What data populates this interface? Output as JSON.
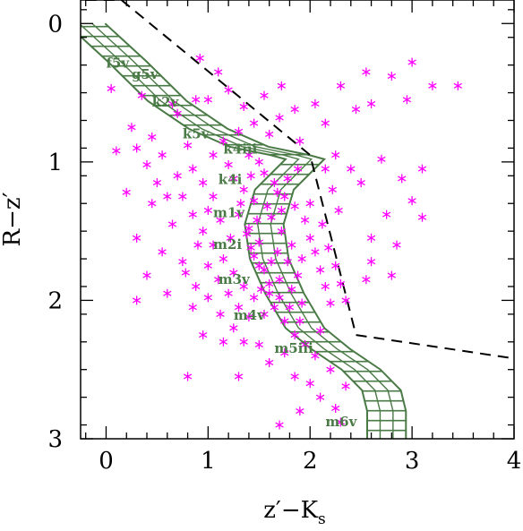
{
  "chart_data": {
    "type": "scatter",
    "title": "",
    "xlabel": "z′−K",
    "xlabel_subscript": "s",
    "ylabel": "R−z′",
    "xlim": [
      -0.25,
      4.0
    ],
    "ylim": [
      3.0,
      -0.17
    ],
    "y_inverted": true,
    "x_ticks": [
      "0",
      "1",
      "2",
      "3",
      "4"
    ],
    "y_ticks": [
      "0",
      "1",
      "2",
      "3"
    ],
    "grid": false,
    "colors": {
      "points": "#ff00ff",
      "band": "#4a7a46",
      "spectral_labels": "#4a7a46",
      "cut_line": "#000000"
    },
    "spectral_types": [
      {
        "label": "f5v",
        "x": 0.0,
        "y": 0.32
      },
      {
        "label": "g5v",
        "x": 0.25,
        "y": 0.4
      },
      {
        "label": "k2v",
        "x": 0.45,
        "y": 0.6
      },
      {
        "label": "k5v",
        "x": 0.75,
        "y": 0.83
      },
      {
        "label": "k4iii",
        "x": 1.15,
        "y": 0.94
      },
      {
        "label": "k4i",
        "x": 1.1,
        "y": 1.16
      },
      {
        "label": "m1v",
        "x": 1.05,
        "y": 1.4
      },
      {
        "label": "m2i",
        "x": 1.05,
        "y": 1.63
      },
      {
        "label": "m3v",
        "x": 1.1,
        "y": 1.88
      },
      {
        "label": "m4v",
        "x": 1.25,
        "y": 2.14
      },
      {
        "label": "m5iii",
        "x": 1.65,
        "y": 2.38
      },
      {
        "label": "m6v",
        "x": 2.15,
        "y": 2.91
      }
    ],
    "band_centerline": [
      [
        -0.2,
        0.0
      ],
      [
        0.2,
        0.27
      ],
      [
        0.6,
        0.56
      ],
      [
        1.0,
        0.76
      ],
      [
        1.4,
        0.89
      ],
      [
        1.8,
        0.95
      ],
      [
        1.95,
        0.98
      ],
      [
        1.65,
        1.2
      ],
      [
        1.55,
        1.45
      ],
      [
        1.6,
        1.7
      ],
      [
        1.75,
        1.95
      ],
      [
        1.95,
        2.2
      ],
      [
        2.2,
        2.35
      ],
      [
        2.5,
        2.5
      ],
      [
        2.7,
        2.65
      ],
      [
        2.75,
        2.8
      ],
      [
        2.75,
        3.0
      ]
    ],
    "band_half_width": 0.19,
    "cut_line": [
      [
        -0.2,
        -0.17
      ],
      [
        0.15,
        -0.17
      ],
      [
        2.0,
        0.95
      ],
      [
        2.45,
        2.25
      ],
      [
        4.0,
        2.42
      ]
    ],
    "points_xy": [
      [
        0.92,
        0.25
      ],
      [
        1.1,
        0.35
      ],
      [
        0.88,
        0.55
      ],
      [
        1.2,
        0.48
      ],
      [
        1.35,
        0.6
      ],
      [
        1.55,
        0.52
      ],
      [
        1.72,
        0.45
      ],
      [
        1.85,
        0.62
      ],
      [
        2.05,
        0.58
      ],
      [
        2.3,
        0.45
      ],
      [
        2.55,
        0.35
      ],
      [
        2.8,
        0.38
      ],
      [
        3.0,
        0.28
      ],
      [
        3.2,
        0.45
      ],
      [
        3.45,
        0.45
      ],
      [
        2.95,
        0.55
      ],
      [
        2.6,
        0.58
      ],
      [
        2.45,
        0.62
      ],
      [
        0.05,
        0.47
      ],
      [
        0.35,
        0.52
      ],
      [
        0.65,
        0.58
      ],
      [
        0.1,
        0.92
      ],
      [
        0.3,
        0.9
      ],
      [
        0.55,
        0.95
      ],
      [
        0.8,
        0.88
      ],
      [
        1.3,
        0.78
      ],
      [
        1.6,
        0.8
      ],
      [
        2.15,
        0.72
      ],
      [
        2.25,
        0.95
      ],
      [
        2.4,
        1.05
      ],
      [
        2.5,
        1.15
      ],
      [
        2.7,
        0.98
      ],
      [
        2.9,
        1.12
      ],
      [
        3.1,
        1.05
      ],
      [
        3.0,
        1.28
      ],
      [
        2.75,
        1.38
      ],
      [
        2.6,
        1.55
      ],
      [
        2.85,
        1.6
      ],
      [
        2.6,
        1.72
      ],
      [
        3.1,
        1.4
      ],
      [
        2.55,
        1.85
      ],
      [
        2.8,
        1.82
      ],
      [
        0.4,
        1.02
      ],
      [
        0.7,
        1.1
      ],
      [
        0.2,
        1.22
      ],
      [
        0.45,
        1.3
      ],
      [
        0.65,
        1.45
      ],
      [
        0.3,
        1.55
      ],
      [
        0.55,
        1.65
      ],
      [
        0.75,
        1.72
      ],
      [
        0.4,
        1.82
      ],
      [
        0.6,
        1.95
      ],
      [
        0.85,
        2.05
      ],
      [
        1.0,
        1.98
      ],
      [
        0.3,
        2.0
      ],
      [
        0.95,
        2.25
      ],
      [
        1.15,
        2.3
      ],
      [
        1.5,
        2.32
      ],
      [
        1.6,
        2.45
      ],
      [
        1.85,
        2.55
      ],
      [
        2.0,
        2.6
      ],
      [
        2.1,
        2.7
      ],
      [
        2.25,
        2.78
      ],
      [
        2.3,
        2.88
      ],
      [
        0.8,
        2.55
      ],
      [
        1.3,
        2.55
      ],
      [
        1.7,
        2.9
      ],
      [
        1.9,
        2.8
      ],
      [
        2.2,
        2.5
      ],
      [
        2.35,
        2.62
      ],
      [
        0.85,
        1.05
      ],
      [
        0.95,
        1.15
      ],
      [
        1.05,
        1.25
      ],
      [
        1.0,
        1.35
      ],
      [
        0.95,
        1.5
      ],
      [
        1.05,
        1.6
      ],
      [
        1.15,
        1.7
      ],
      [
        1.1,
        1.85
      ],
      [
        1.2,
        1.95
      ],
      [
        1.3,
        2.05
      ],
      [
        1.4,
        2.12
      ],
      [
        1.55,
        2.1
      ],
      [
        1.25,
        1.12
      ],
      [
        1.35,
        1.2
      ],
      [
        1.45,
        1.28
      ],
      [
        1.3,
        1.38
      ],
      [
        1.4,
        1.48
      ],
      [
        1.5,
        1.58
      ],
      [
        1.45,
        1.68
      ],
      [
        1.55,
        1.78
      ],
      [
        1.6,
        1.88
      ],
      [
        1.7,
        1.98
      ],
      [
        1.8,
        2.05
      ],
      [
        1.9,
        2.15
      ],
      [
        1.55,
        1.08
      ],
      [
        1.65,
        1.15
      ],
      [
        1.75,
        1.25
      ],
      [
        1.85,
        1.32
      ],
      [
        1.95,
        1.42
      ],
      [
        2.0,
        1.55
      ],
      [
        2.05,
        1.65
      ],
      [
        2.1,
        1.78
      ],
      [
        2.15,
        1.9
      ],
      [
        2.2,
        2.02
      ],
      [
        2.1,
        2.22
      ],
      [
        2.0,
        1.3
      ],
      [
        1.62,
        1.4
      ],
      [
        1.72,
        1.5
      ],
      [
        1.82,
        1.6
      ],
      [
        1.68,
        1.65
      ],
      [
        1.78,
        1.72
      ],
      [
        1.88,
        1.82
      ],
      [
        1.6,
        1.95
      ],
      [
        1.7,
        1.85
      ],
      [
        1.5,
        1.75
      ],
      [
        1.42,
        1.62
      ],
      [
        1.38,
        1.52
      ],
      [
        1.48,
        1.42
      ],
      [
        1.58,
        1.32
      ],
      [
        1.68,
        1.22
      ],
      [
        1.78,
        1.12
      ],
      [
        1.88,
        1.05
      ],
      [
        1.2,
        1.02
      ],
      [
        1.12,
        1.42
      ],
      [
        1.22,
        1.55
      ],
      [
        1.25,
        1.8
      ],
      [
        1.35,
        1.9
      ],
      [
        1.45,
        1.98
      ],
      [
        1.65,
        2.05
      ],
      [
        1.75,
        2.15
      ],
      [
        1.85,
        2.25
      ],
      [
        1.95,
        2.32
      ],
      [
        2.05,
        2.4
      ],
      [
        1.75,
        2.38
      ],
      [
        2.12,
        1.45
      ],
      [
        2.18,
        1.62
      ],
      [
        2.25,
        1.75
      ],
      [
        2.3,
        1.88
      ],
      [
        2.35,
        2.0
      ],
      [
        2.28,
        1.35
      ],
      [
        2.22,
        1.2
      ],
      [
        1.05,
        0.95
      ],
      [
        1.15,
        0.85
      ],
      [
        1.4,
        0.95
      ],
      [
        1.5,
        1.0
      ],
      [
        0.75,
        1.25
      ],
      [
        0.85,
        1.38
      ],
      [
        0.9,
        1.6
      ],
      [
        0.78,
        1.8
      ],
      [
        0.88,
        1.9
      ],
      [
        1.0,
        1.75
      ],
      [
        1.12,
        2.1
      ],
      [
        1.25,
        2.2
      ],
      [
        1.35,
        2.3
      ],
      [
        0.5,
        1.15
      ],
      [
        0.6,
        1.25
      ],
      [
        0.7,
        0.65
      ],
      [
        1.0,
        0.55
      ],
      [
        1.45,
        0.72
      ],
      [
        1.7,
        0.68
      ],
      [
        1.9,
        0.85
      ],
      [
        2.15,
        1.05
      ],
      [
        0.25,
        0.75
      ],
      [
        0.45,
        0.82
      ],
      [
        1.62,
        1.72
      ],
      [
        1.52,
        1.92
      ],
      [
        1.82,
        1.92
      ],
      [
        1.92,
        2.02
      ],
      [
        1.72,
        1.35
      ],
      [
        1.42,
        1.1
      ],
      [
        1.32,
        1.3
      ],
      [
        1.92,
        1.7
      ]
    ]
  }
}
